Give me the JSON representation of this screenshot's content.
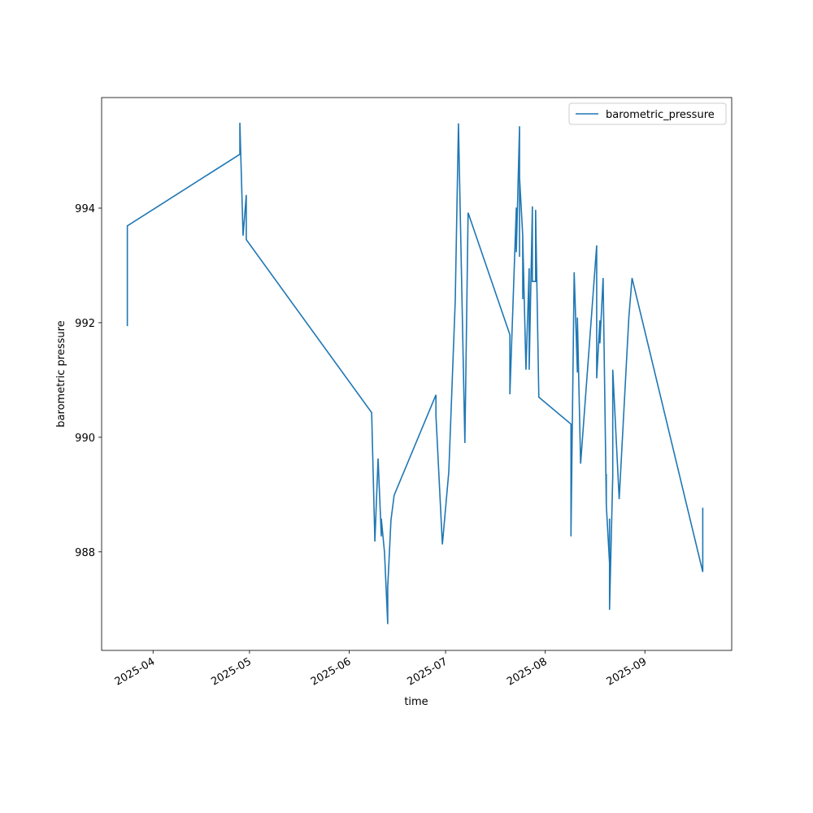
{
  "chart_data": {
    "type": "line",
    "x_label": "time",
    "y_label": "barometric pressure",
    "x": [
      "2025-03-24",
      "2025-03-24",
      "2025-04-28",
      "2025-04-28",
      "2025-04-29",
      "2025-04-30",
      "2025-04-30",
      "2025-06-08",
      "2025-06-09",
      "2025-06-10",
      "2025-06-11",
      "2025-06-11",
      "2025-06-12",
      "2025-06-13",
      "2025-06-13",
      "2025-06-14",
      "2025-06-15",
      "2025-06-28",
      "2025-06-28",
      "2025-06-30",
      "2025-07-02",
      "2025-07-04",
      "2025-07-05",
      "2025-07-07",
      "2025-07-08",
      "2025-07-21",
      "2025-07-21",
      "2025-07-21",
      "2025-07-23",
      "2025-07-23",
      "2025-07-24",
      "2025-07-24",
      "2025-07-24",
      "2025-07-25",
      "2025-07-25",
      "2025-07-25",
      "2025-07-26",
      "2025-07-27",
      "2025-07-27",
      "2025-07-28",
      "2025-07-28",
      "2025-07-29",
      "2025-07-29",
      "2025-07-30",
      "2025-08-09",
      "2025-08-09",
      "2025-08-10",
      "2025-08-11",
      "2025-08-11",
      "2025-08-12",
      "2025-08-17",
      "2025-08-17",
      "2025-08-18",
      "2025-08-18",
      "2025-08-19",
      "2025-08-20",
      "2025-08-20",
      "2025-08-20",
      "2025-08-21",
      "2025-08-21",
      "2025-08-21",
      "2025-08-21",
      "2025-08-22",
      "2025-08-22",
      "2025-08-24",
      "2025-08-27",
      "2025-08-28",
      "2025-09-19",
      "2025-09-19"
    ],
    "series": [
      {
        "name": "barometric_pressure",
        "color": "#1f77b4",
        "values": [
          991.94,
          993.69,
          994.94,
          995.49,
          993.52,
          994.23,
          993.45,
          990.43,
          988.18,
          989.63,
          988.27,
          988.58,
          987.99,
          986.74,
          987.38,
          988.55,
          988.99,
          990.74,
          990.38,
          988.13,
          989.4,
          992.38,
          995.48,
          989.9,
          993.92,
          991.79,
          991.79,
          990.75,
          994.01,
          993.23,
          995.43,
          993.15,
          994.54,
          993.52,
          992.41,
          993.49,
          991.18,
          992.95,
          991.18,
          994.03,
          992.72,
          992.72,
          993.97,
          990.7,
          990.23,
          988.27,
          992.88,
          991.13,
          992.09,
          989.54,
          993.35,
          991.03,
          992.04,
          991.64,
          992.78,
          988.81,
          989.36,
          988.81,
          987.8,
          987.2,
          988.58,
          986.99,
          989.33,
          991.18,
          988.92,
          992.09,
          992.78,
          987.65,
          988.77
        ]
      }
    ],
    "xlim": [
      "2025-03-16",
      "2025-09-28"
    ],
    "xticks": [
      {
        "value": "2025-04-01",
        "label": "2025-04"
      },
      {
        "value": "2025-05-01",
        "label": "2025-05"
      },
      {
        "value": "2025-06-01",
        "label": "2025-06"
      },
      {
        "value": "2025-07-01",
        "label": "2025-07"
      },
      {
        "value": "2025-08-01",
        "label": "2025-08"
      },
      {
        "value": "2025-09-01",
        "label": "2025-09"
      }
    ],
    "ylim": [
      986.28,
      995.93
    ],
    "yticks": [
      988,
      990,
      992,
      994
    ],
    "grid": false,
    "legend": "upper right"
  }
}
